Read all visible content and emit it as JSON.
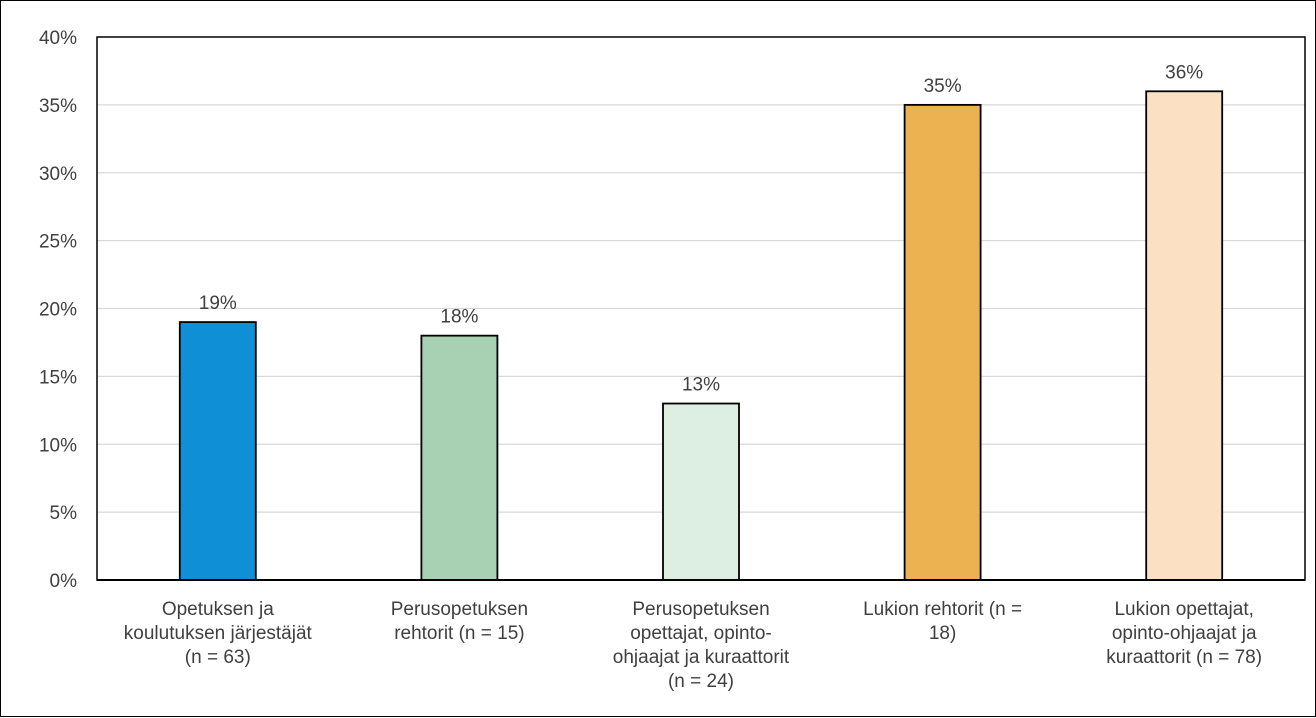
{
  "chart_data": {
    "type": "bar",
    "title": "",
    "xlabel": "",
    "ylabel": "",
    "ylim": [
      0,
      40
    ],
    "yticks": [
      "0%",
      "5%",
      "10%",
      "15%",
      "20%",
      "25%",
      "30%",
      "35%",
      "40%"
    ],
    "grid": true,
    "categories": [
      [
        "Opetuksen ja",
        "koulutuksen järjestäjät",
        "(n = 63)"
      ],
      [
        "Perusopetuksen",
        "rehtorit (n = 15)"
      ],
      [
        "Perusopetuksen",
        "opettajat, opinto-",
        "ohjaajat ja kuraattorit",
        "(n = 24)"
      ],
      [
        "Lukion rehtorit (n =",
        "18)"
      ],
      [
        "Lukion opettajat,",
        "opinto-ohjaajat ja",
        "kuraattorit (n = 78)"
      ]
    ],
    "values": [
      19,
      18,
      13,
      35,
      36
    ],
    "data_labels": [
      "19%",
      "18%",
      "13%",
      "35%",
      "36%"
    ],
    "bar_colors": [
      "#0f8fd6",
      "#a8d1b4",
      "#ddefe3",
      "#ecb251",
      "#fbe0c4"
    ],
    "legend": "none"
  }
}
